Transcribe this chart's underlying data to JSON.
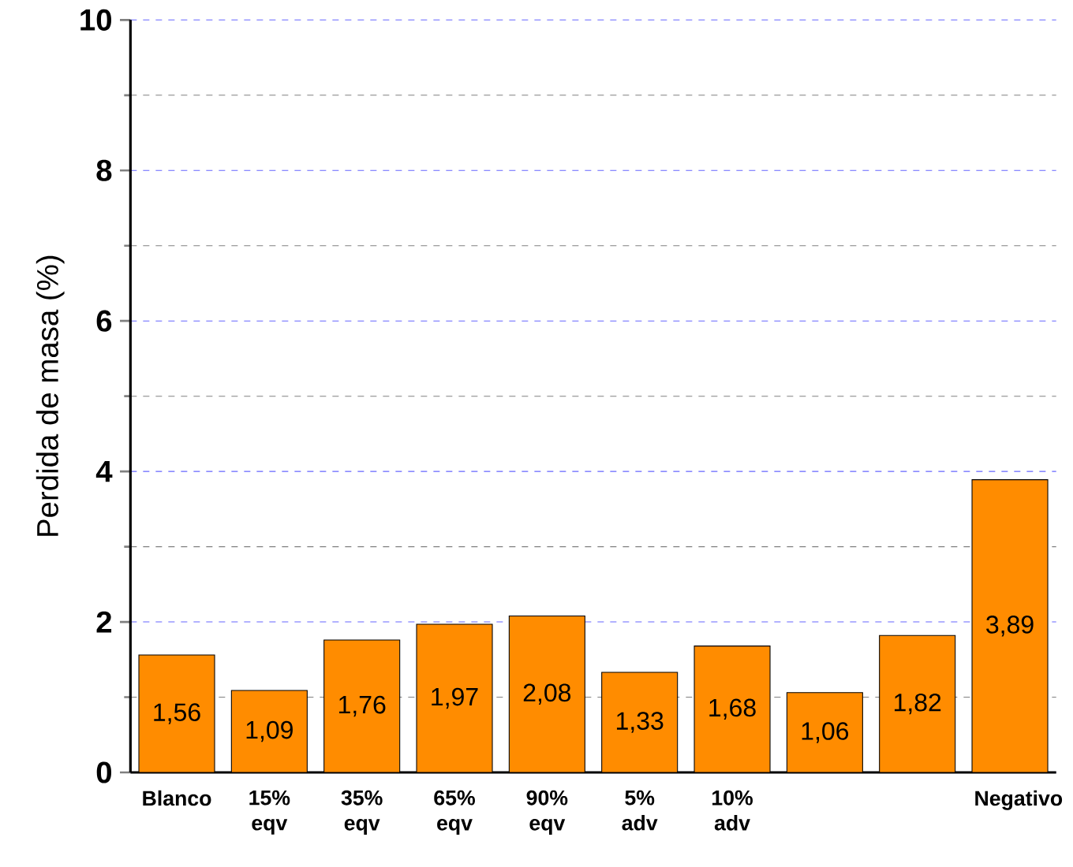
{
  "chart_data": {
    "type": "bar",
    "ylabel": "Perdida de masa (%)",
    "categories": [
      "Blanco",
      "15% eqv",
      "35% eqv",
      "65% eqv",
      "90% eqv",
      "5% adv",
      "10% adv",
      null,
      null,
      "Negativo"
    ],
    "values": [
      1.56,
      1.09,
      1.76,
      1.97,
      2.08,
      1.33,
      1.68,
      1.06,
      1.82,
      3.89
    ],
    "value_labels": [
      "1,56",
      "1,09",
      "1,76",
      "1,97",
      "2,08",
      "1,33",
      "1,68",
      "1,06",
      "1,82",
      "3,89"
    ],
    "color": "#ff8c00",
    "ylim": [
      0,
      10
    ],
    "yticks": [
      0,
      2,
      4,
      6,
      8,
      10
    ],
    "grid": "y"
  }
}
